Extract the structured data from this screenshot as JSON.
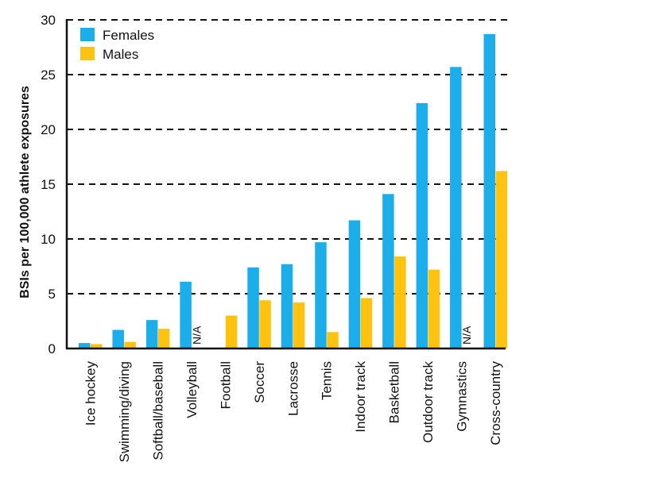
{
  "chart_data": {
    "type": "bar",
    "title": "",
    "xlabel": "",
    "ylabel": "BSIs per 100,000 athlete exposures",
    "ylim": [
      0,
      30
    ],
    "yticks": [
      0,
      5,
      10,
      15,
      20,
      25,
      30
    ],
    "grid": "dashed horizontal",
    "legend_position": "top-left",
    "categories": [
      "Ice hockey",
      "Swimming/diving",
      "Softball/baseball",
      "Volleyball",
      "Football",
      "Soccer",
      "Lacrosse",
      "Tennis",
      "Indoor track",
      "Basketball",
      "Outdoor track",
      "Gymnastics",
      "Cross-country"
    ],
    "series": [
      {
        "name": "Females",
        "color": "#1BAEEA",
        "values": [
          0.5,
          1.7,
          2.6,
          6.1,
          null,
          7.4,
          7.7,
          9.7,
          11.7,
          14.1,
          22.4,
          25.7,
          28.7
        ]
      },
      {
        "name": "Males",
        "color": "#FFC20E",
        "values": [
          0.4,
          0.6,
          1.8,
          null,
          3.0,
          4.4,
          4.2,
          1.5,
          4.6,
          8.4,
          7.2,
          null,
          16.2
        ]
      }
    ],
    "missing_label": "N/A"
  }
}
